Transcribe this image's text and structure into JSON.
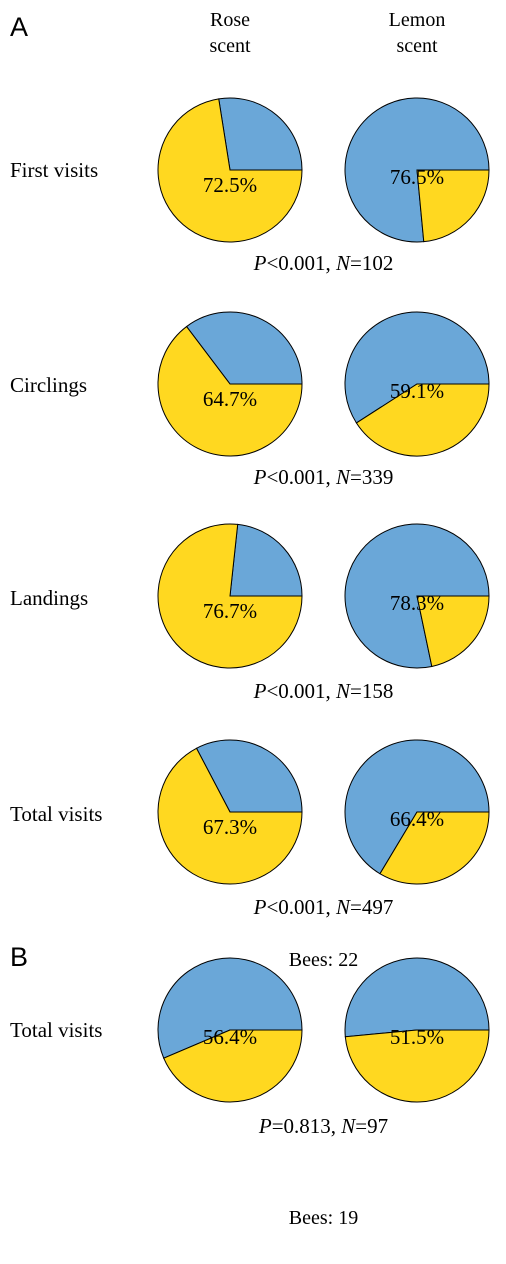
{
  "colors": {
    "rose_slice": "#ffd820",
    "lemon_slice": "#6aa7d8",
    "outline": "#000000"
  },
  "chart_data": [
    {
      "type": "pie",
      "panel": "A",
      "columns": [
        "Rose\nscent",
        "Lemon\nscent"
      ],
      "rows": [
        {
          "label": "First visits",
          "rose_pie": {
            "highlighted_value": 72.5,
            "highlighted_color": "yellow",
            "label": "72.5%"
          },
          "lemon_pie": {
            "highlighted_value": 76.5,
            "highlighted_color": "blue",
            "label": "76.5%"
          },
          "stats": {
            "p_symbol": "P",
            "p_rel": "<0.001",
            "n_symbol": "N",
            "n_rel": "=102"
          }
        },
        {
          "label": "Circlings",
          "rose_pie": {
            "highlighted_value": 64.7,
            "highlighted_color": "yellow",
            "label": "64.7%"
          },
          "lemon_pie": {
            "highlighted_value": 59.1,
            "highlighted_color": "blue",
            "label": "59.1%"
          },
          "stats": {
            "p_symbol": "P",
            "p_rel": "<0.001",
            "n_symbol": "N",
            "n_rel": "=339"
          }
        },
        {
          "label": "Landings",
          "rose_pie": {
            "highlighted_value": 76.7,
            "highlighted_color": "yellow",
            "label": "76.7%"
          },
          "lemon_pie": {
            "highlighted_value": 78.3,
            "highlighted_color": "blue",
            "label": "78.3%"
          },
          "stats": {
            "p_symbol": "P",
            "p_rel": "<0.001",
            "n_symbol": "N",
            "n_rel": "=158"
          }
        },
        {
          "label": "Total visits",
          "rose_pie": {
            "highlighted_value": 67.3,
            "highlighted_color": "yellow",
            "label": "67.3%"
          },
          "lemon_pie": {
            "highlighted_value": 66.4,
            "highlighted_color": "blue",
            "label": "66.4%"
          },
          "stats": {
            "p_symbol": "P",
            "p_rel": "<0.001",
            "n_symbol": "N",
            "n_rel": "=497"
          }
        }
      ],
      "footer": "Bees: 22"
    },
    {
      "type": "pie",
      "panel": "B",
      "rows": [
        {
          "label": "Total visits",
          "rose_pie": {
            "highlighted_value": 56.4,
            "highlighted_color": "blue",
            "label": "56.4%"
          },
          "lemon_pie": {
            "highlighted_value": 51.5,
            "highlighted_color": "blue",
            "label": "51.5%"
          },
          "stats": {
            "p_symbol": "P",
            "p_rel": "=0.813",
            "n_symbol": "N",
            "n_rel": "=97"
          }
        }
      ],
      "footer": "Bees: 19"
    }
  ]
}
